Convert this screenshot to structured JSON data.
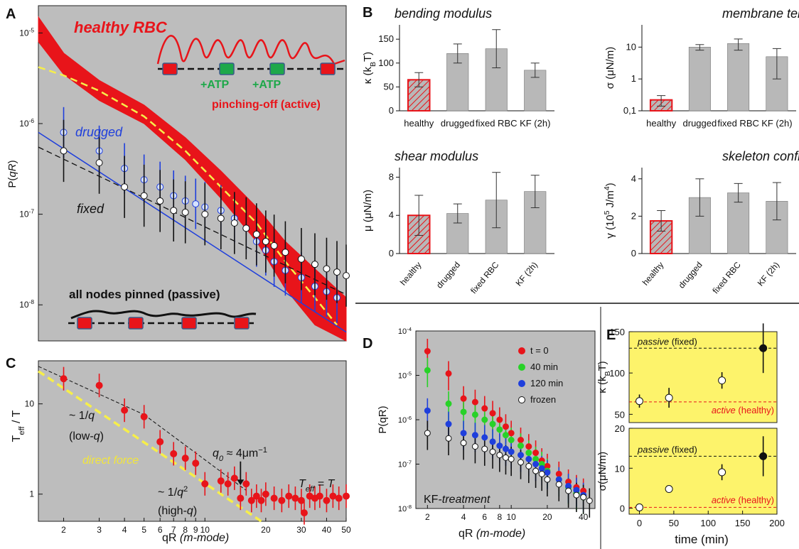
{
  "colors": {
    "panel_bg": "#bdbdbd",
    "yellow_bg": "#fdf36b",
    "red": "#e8141a",
    "blue": "#1f3fdc",
    "green": "#28d228",
    "black": "#111111",
    "bar_gray": "#b8b8b8",
    "dashed_yellow": "#f6ee4a"
  },
  "panel_letters": [
    "A",
    "B",
    "C",
    "D",
    "E"
  ],
  "chart_data": [
    {
      "id": "A",
      "type": "scatter",
      "title": "",
      "xlabel": "qR (m-mode)",
      "ylabel": "P(qR)",
      "yscale": "log",
      "ylim": [
        4e-09,
        2e-05
      ],
      "xlim": [
        1.5,
        50
      ],
      "ytick_labels": [
        "10^-8",
        "10^-7",
        "10^-6",
        "10^-5"
      ],
      "annotations": [
        "healthy RBC",
        "+ATP",
        "+ATP",
        "pinching-off (active)",
        "drugged",
        "fixed",
        "all nodes pinned (passive)"
      ],
      "series": [
        {
          "name": "healthy RBC",
          "band": true,
          "upper_approx": [
            [
              1.5,
              1.5e-05
            ],
            [
              2,
              6e-06
            ],
            [
              3,
              3e-06
            ],
            [
              5,
              1.6e-06
            ],
            [
              8,
              7e-07
            ],
            [
              12,
              3e-07
            ],
            [
              18,
              1.2e-07
            ],
            [
              25,
              5e-08
            ],
            [
              35,
              2.5e-08
            ],
            [
              50,
              1.2e-08
            ]
          ],
          "lower_approx": [
            [
              1.5,
              8e-06
            ],
            [
              2,
              3.5e-06
            ],
            [
              3,
              1.8e-06
            ],
            [
              5,
              1e-06
            ],
            [
              8,
              4e-07
            ],
            [
              12,
              1.5e-07
            ],
            [
              18,
              5e-08
            ],
            [
              25,
              1.5e-08
            ],
            [
              35,
              6e-09
            ],
            [
              50,
              4e-09
            ]
          ]
        },
        {
          "name": "drugged",
          "x": [
            2,
            3,
            4,
            5,
            6,
            7,
            8,
            9,
            10,
            12,
            14,
            16,
            18,
            20,
            22,
            25,
            30,
            35,
            40,
            45
          ],
          "y": [
            8e-07,
            5e-07,
            3.2e-07,
            2.4e-07,
            2e-07,
            1.6e-07,
            1.4e-07,
            1.3e-07,
            1.2e-07,
            1.1e-07,
            9e-08,
            7e-08,
            5e-08,
            4e-08,
            3e-08,
            2.4e-08,
            2e-08,
            1.6e-08,
            1.4e-08,
            1.2e-08
          ]
        },
        {
          "name": "fixed",
          "x": [
            2,
            3,
            4,
            5,
            6,
            7,
            8,
            10,
            12,
            14,
            16,
            18,
            20,
            22,
            25,
            30,
            35,
            40,
            45,
            50
          ],
          "y": [
            5e-07,
            3.7e-07,
            2e-07,
            1.6e-07,
            1.4e-07,
            1.1e-07,
            1.05e-07,
            1e-07,
            9e-08,
            8e-08,
            7e-08,
            6e-08,
            5e-08,
            4.5e-08,
            3.8e-08,
            3.2e-08,
            2.8e-08,
            2.5e-08,
            2.3e-08,
            2.1e-08
          ]
        }
      ]
    },
    {
      "id": "B",
      "type": "bar",
      "subplots": [
        {
          "title": "bending modulus",
          "ylabel": "κ (k_BT)",
          "ylim": [
            0,
            180
          ],
          "ytick_labels": [
            "0",
            "50",
            "100",
            "150"
          ],
          "categories": [
            "healthy",
            "drugged",
            "fixed RBC",
            "KF (2h)"
          ],
          "values": [
            65,
            120,
            130,
            85
          ],
          "errors": [
            15,
            20,
            40,
            15
          ]
        },
        {
          "title": "membrane tension",
          "ylabel": "σ (μN/m)",
          "yscale": "log",
          "ylim": [
            0.1,
            50
          ],
          "ytick_labels": [
            "0,1",
            "1",
            "10"
          ],
          "categories": [
            "healthy",
            "drugged",
            "fixed RBC",
            "KF (2h)"
          ],
          "values": [
            0.22,
            10,
            13,
            5
          ],
          "errors": [
            0.08,
            2,
            5,
            4
          ]
        },
        {
          "title": "shear modulus",
          "ylabel": "μ (μN/m)",
          "ylim": [
            0,
            9
          ],
          "ytick_labels": [
            "0",
            "4",
            "8"
          ],
          "categories": [
            "healthy",
            "drugged",
            "fixed RBC",
            "KF (2h)"
          ],
          "values": [
            4,
            4.2,
            5.6,
            6.5
          ],
          "errors": [
            2.1,
            1,
            2.9,
            1.7
          ]
        },
        {
          "title": "skeleton confinement",
          "ylabel": "γ (10^5 J/m^4)",
          "ylim": [
            0,
            4.6
          ],
          "ytick_labels": [
            "0",
            "2",
            "4"
          ],
          "categories": [
            "healthy",
            "drugged",
            "fixed RBC",
            "KF (2h)"
          ],
          "values": [
            1.75,
            3,
            3.25,
            2.8
          ],
          "errors": [
            0.55,
            1,
            0.5,
            1
          ]
        }
      ]
    },
    {
      "id": "C",
      "type": "scatter",
      "xlabel": "qR (m-mode)",
      "ylabel": "T_eff / T",
      "yscale": "log",
      "xscale": "log",
      "xlim": [
        1.5,
        50
      ],
      "ylim": [
        0.5,
        30
      ],
      "xtick_labels": [
        "2",
        "3",
        "4",
        "5",
        "6",
        "7",
        "8",
        "9",
        "10",
        "20",
        "30",
        "40",
        "50"
      ],
      "ytick_labels": [
        "1",
        "10"
      ],
      "annotations": [
        "~ 1/q",
        "(low-q)",
        "direct force",
        "~ 1/q^2",
        "(high-q)",
        "q_0 ≈ 4μm^-1",
        "T_eff = T"
      ],
      "series": [
        {
          "name": "",
          "x": [
            2,
            3,
            4,
            5,
            6,
            7,
            8,
            9,
            10,
            12,
            13,
            14,
            15,
            16,
            17,
            18,
            19,
            20,
            22,
            24,
            26,
            28,
            30,
            31,
            33,
            35,
            37,
            40,
            43,
            46,
            50
          ],
          "y": [
            19,
            16,
            8.5,
            7.2,
            3.8,
            2.8,
            2.5,
            2.2,
            1.3,
            1.4,
            1.3,
            1.5,
            0.9,
            1.3,
            0.85,
            0.95,
            0.85,
            1.0,
            0.9,
            0.85,
            0.95,
            0.9,
            0.85,
            0.62,
            0.95,
            0.9,
            0.95,
            0.85,
            0.95,
            0.9,
            0.95
          ]
        }
      ]
    },
    {
      "id": "D",
      "type": "scatter",
      "xlabel": "qR (m-mode)",
      "ylabel": "P(qR)",
      "yscale": "log",
      "xscale": "log",
      "xlim": [
        1.6,
        50
      ],
      "ylim": [
        1e-08,
        0.0001
      ],
      "xtick_labels": [
        "2",
        "4",
        "6",
        "8",
        "10",
        "20",
        "40"
      ],
      "ytick_labels": [
        "10^-8",
        "10^-7",
        "10^-6",
        "10^-5",
        "10^-4"
      ],
      "annotations": [
        "KF-treatment"
      ],
      "legend_position": "top-right",
      "series": [
        {
          "name": "t = 0",
          "x": [
            2,
            3,
            4,
            5,
            6,
            7,
            8,
            9,
            10,
            12,
            14,
            16,
            18,
            20,
            25,
            30,
            35,
            40
          ],
          "y": [
            3.5e-05,
            1.1e-05,
            3e-06,
            2.5e-06,
            1.8e-06,
            1.4e-06,
            1e-06,
            7e-07,
            5e-07,
            3.5e-07,
            2.5e-07,
            1.8e-07,
            1.2e-07,
            9e-08,
            6e-08,
            4e-08,
            3e-08,
            2.5e-08
          ]
        },
        {
          "name": "40 min",
          "x": [
            2,
            3,
            4,
            5,
            6,
            7,
            8,
            9,
            10,
            12,
            14,
            16,
            18,
            20,
            25,
            30,
            35,
            40
          ],
          "y": [
            1.3e-05,
            2.3e-06,
            1.5e-06,
            1.3e-06,
            1e-06,
            8e-07,
            6e-07,
            4.5e-07,
            3.5e-07,
            2.6e-07,
            1.8e-07,
            1.3e-07,
            1e-07,
            7e-08,
            4.5e-08,
            3e-08,
            2.2e-08,
            1.8e-08
          ]
        },
        {
          "name": "120 min",
          "x": [
            2,
            3,
            4,
            5,
            6,
            7,
            8,
            9,
            10,
            12,
            14,
            16,
            18,
            20,
            25,
            30,
            35,
            40
          ],
          "y": [
            1.6e-06,
            8e-07,
            5e-07,
            4.5e-07,
            4e-07,
            3.2e-07,
            2.6e-07,
            2.2e-07,
            1.9e-07,
            1.6e-07,
            1.3e-07,
            1e-07,
            8e-08,
            6.5e-08,
            4.5e-08,
            3.2e-08,
            2.6e-08,
            2e-08
          ]
        },
        {
          "name": "frozen",
          "x": [
            2,
            3,
            4,
            5,
            6,
            7,
            8,
            9,
            10,
            12,
            14,
            16,
            18,
            20,
            25,
            30,
            35,
            40,
            45
          ],
          "y": [
            5e-07,
            3.8e-07,
            3e-07,
            2.5e-07,
            2.2e-07,
            1.9e-07,
            1.6e-07,
            1.4e-07,
            1.3e-07,
            1.1e-07,
            9e-08,
            7e-08,
            6e-08,
            4.5e-08,
            3.5e-08,
            2.5e-08,
            2e-08,
            1.8e-08,
            1.5e-08
          ]
        }
      ]
    },
    {
      "id": "E",
      "type": "scatter",
      "xlabel": "time (min)",
      "xlim": [
        -15,
        200
      ],
      "xtick_labels": [
        "0",
        "50",
        "100",
        "150",
        "200"
      ],
      "subplots": [
        {
          "ylabel": "κ (k_BT)",
          "ylim": [
            40,
            150
          ],
          "ytick_labels": [
            "50",
            "100",
            "150"
          ],
          "hlines": [
            {
              "label_italic": "passive",
              "label_rest": "(fixed)",
              "y": 130,
              "color": "#111111"
            },
            {
              "label_italic": "active",
              "label_rest": "(healthy)",
              "y": 65,
              "color": "#e8141a"
            }
          ],
          "points": [
            {
              "x": 0,
              "y": 66,
              "err": 8,
              "filled": false
            },
            {
              "x": 43,
              "y": 70,
              "err": 12,
              "filled": false
            },
            {
              "x": 120,
              "y": 91,
              "err": 10,
              "filled": false
            },
            {
              "x": 180,
              "y": 130,
              "err": 30,
              "filled": true
            }
          ]
        },
        {
          "ylabel": "σ(μN/m)",
          "ylim": [
            -1.5,
            20
          ],
          "ytick_labels": [
            "0",
            "10",
            "20"
          ],
          "hlines": [
            {
              "label_italic": "passive",
              "label_rest": "(fixed)",
              "y": 13,
              "color": "#111111"
            },
            {
              "label_italic": "active",
              "label_rest": "(healthy)",
              "y": 0.2,
              "color": "#e8141a"
            }
          ],
          "points": [
            {
              "x": 0,
              "y": 0.2,
              "err": 0.5,
              "filled": false
            },
            {
              "x": 43,
              "y": 4.8,
              "err": 0.8,
              "filled": false
            },
            {
              "x": 120,
              "y": 9,
              "err": 2,
              "filled": false
            },
            {
              "x": 180,
              "y": 13,
              "err": 5,
              "filled": true
            }
          ]
        }
      ]
    }
  ]
}
